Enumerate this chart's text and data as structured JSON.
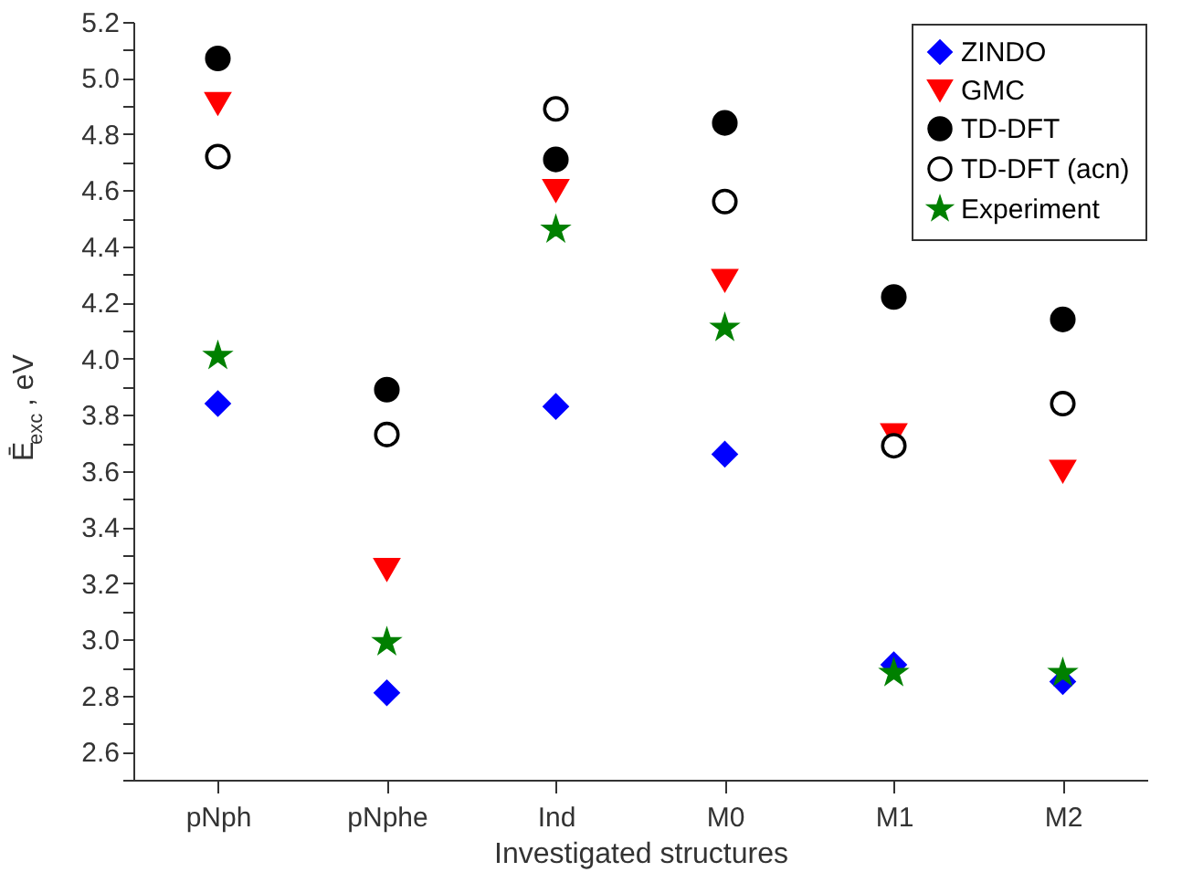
{
  "chart_data": {
    "type": "scatter",
    "xlabel": "Investigated structures",
    "ylabel": "Ē$_{exc}$, eV",
    "categories": [
      "pNph",
      "pNphe",
      "Ind",
      "M0",
      "M1",
      "M2"
    ],
    "series": [
      {
        "name": "ZINDO",
        "color": "#0000ff",
        "marker": "diamond",
        "values": [
          3.84,
          2.81,
          3.83,
          3.66,
          2.91,
          2.85
        ]
      },
      {
        "name": "GMC",
        "color": "#ff0000",
        "marker": "triangle-down",
        "values": [
          4.91,
          3.25,
          4.6,
          4.28,
          3.73,
          3.6
        ]
      },
      {
        "name": "TD-DFT",
        "color": "#000000",
        "marker": "circle",
        "values": [
          5.07,
          3.89,
          4.71,
          4.84,
          4.22,
          4.14
        ]
      },
      {
        "name": "TD-DFT (acn)",
        "color": "#000000",
        "marker": "circle",
        "values": [
          4.72,
          3.73,
          4.89,
          4.56,
          3.69,
          3.84
        ]
      },
      {
        "name": "Experiment",
        "color": "#008000",
        "marker": "star",
        "values": [
          4.01,
          2.99,
          4.46,
          4.11,
          2.88,
          2.88
        ]
      }
    ],
    "ylim": [
      2.5,
      5.2
    ],
    "yticks": [
      {
        "value": 2.5,
        "label": null
      },
      2.6,
      {
        "value": 2.7,
        "label": null
      },
      2.8,
      {
        "value": 2.9,
        "label": null
      },
      {
        "value": 3.0,
        "label": "3.0"
      },
      {
        "value": 3.1,
        "label": null
      },
      3.2,
      {
        "value": 3.3,
        "label": null
      },
      3.4,
      {
        "value": 3.5,
        "label": null
      },
      3.6,
      {
        "value": 3.7,
        "label": null
      },
      3.8,
      {
        "value": 3.9,
        "label": null
      },
      {
        "value": 4.0,
        "label": "4.0"
      },
      {
        "value": 4.1,
        "label": null
      },
      4.2,
      {
        "value": 4.3,
        "label": null
      },
      4.4,
      {
        "value": 4.5,
        "label": null
      },
      4.6,
      {
        "value": 4.7,
        "label": null
      },
      4.8,
      {
        "value": 4.9,
        "label": null
      },
      {
        "value": 5.0,
        "label": "5.0"
      },
      {
        "value": 5.1,
        "label": null
      },
      5.2
    ],
    "grid": false,
    "legend": "top right"
  }
}
